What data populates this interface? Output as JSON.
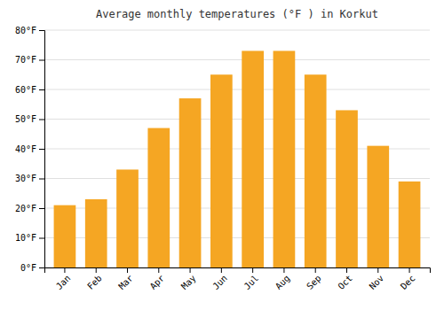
{
  "chart_data": {
    "type": "bar",
    "title": "Average monthly temperatures (°F ) in Korkut",
    "categories": [
      "Jan",
      "Feb",
      "Mar",
      "Apr",
      "May",
      "Jun",
      "Jul",
      "Aug",
      "Sep",
      "Oct",
      "Nov",
      "Dec"
    ],
    "values": [
      21,
      23,
      33,
      47,
      57,
      65,
      73,
      73,
      65,
      53,
      41,
      29
    ],
    "color": "#F5A623",
    "ylim": [
      0,
      80
    ],
    "yticks": [
      {
        "value": 0,
        "label": "0°F"
      },
      {
        "value": 10,
        "label": "10°F"
      },
      {
        "value": 20,
        "label": "20°F"
      },
      {
        "value": 30,
        "label": "30°F"
      },
      {
        "value": 40,
        "label": "40°F"
      },
      {
        "value": 50,
        "label": "50°F"
      },
      {
        "value": 60,
        "label": "60°F"
      },
      {
        "value": 70,
        "label": "70°F"
      },
      {
        "value": 80,
        "label": "80°F"
      }
    ],
    "grid": true
  }
}
